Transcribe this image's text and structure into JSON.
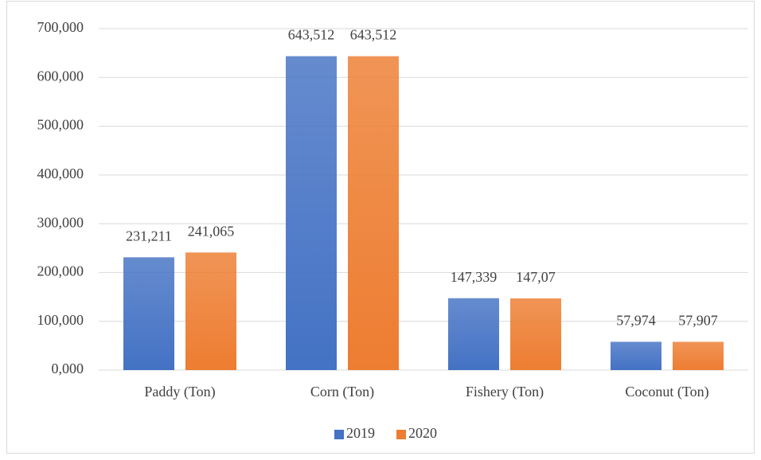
{
  "chart_data": {
    "type": "bar",
    "categories": [
      "Paddy (Ton)",
      "Corn (Ton)",
      "Fishery (Ton)",
      "Coconut (Ton)"
    ],
    "series": [
      {
        "name": "2019",
        "color": "#4472c4",
        "values": [
          231.211,
          643.512,
          147.339,
          57.974
        ],
        "value_labels": [
          "231,211",
          "643,512",
          "147,339",
          "57,974"
        ]
      },
      {
        "name": "2020",
        "color": "#ed7d31",
        "values": [
          241.065,
          643.512,
          147.07,
          57.907
        ],
        "value_labels": [
          "241,065",
          "643,512",
          "147,07",
          "57,907"
        ]
      }
    ],
    "ylim": [
      0,
      700
    ],
    "yticks": [
      {
        "value": 0,
        "label": "0,000"
      },
      {
        "value": 100,
        "label": "100,000"
      },
      {
        "value": 200,
        "label": "200,000"
      },
      {
        "value": 300,
        "label": "300,000"
      },
      {
        "value": 400,
        "label": "400,000"
      },
      {
        "value": 500,
        "label": "500,000"
      },
      {
        "value": 600,
        "label": "600,000"
      },
      {
        "value": 700,
        "label": "700,000"
      }
    ],
    "grid": true,
    "legend": "bottom"
  }
}
